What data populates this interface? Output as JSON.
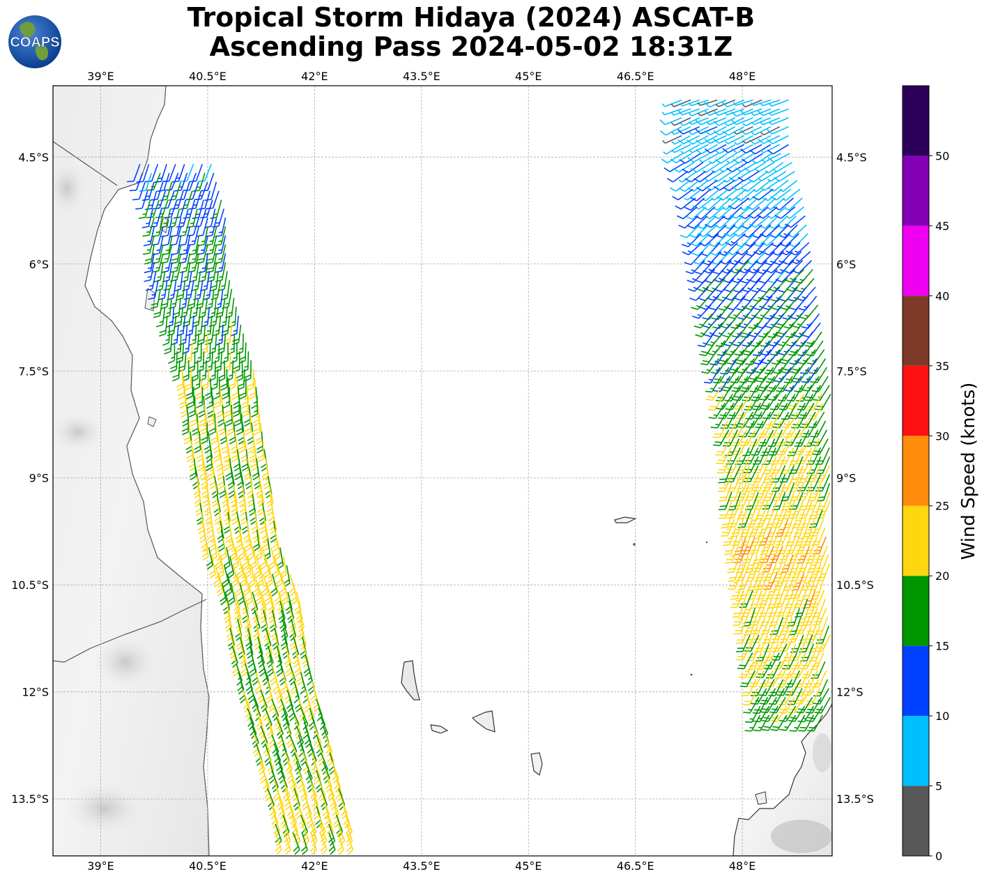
{
  "title": {
    "line1": "Tropical Storm Hidaya (2024) ASCAT-B",
    "line2": "Ascending Pass 2024-05-02 18:31Z"
  },
  "logo": {
    "text": "COAPS",
    "icon": "globe-logo"
  },
  "map": {
    "lon_range": [
      38.33,
      49.26
    ],
    "lat_range": [
      -14.3,
      -3.5
    ],
    "lon_ticks": [
      "39°E",
      "40.5°E",
      "42°E",
      "43.5°E",
      "45°E",
      "46.5°E",
      "48°E"
    ],
    "lat_ticks": [
      "4.5°S",
      "6°S",
      "7.5°S",
      "9°S",
      "10.5°S",
      "12°S",
      "13.5°S"
    ],
    "lon_values": [
      39,
      40.5,
      42,
      43.5,
      45,
      46.5,
      48
    ],
    "lat_values": [
      -4.5,
      -6,
      -7.5,
      -9,
      -10.5,
      -12,
      -13.5
    ],
    "grid": true,
    "background": "gray shaded topography over land"
  },
  "colorbar": {
    "label": "Wind Speed (knots)",
    "ticks": [
      "0",
      "5",
      "10",
      "15",
      "20",
      "25",
      "30",
      "35",
      "40",
      "45",
      "50"
    ],
    "bins": [
      {
        "min": 0,
        "max": 5,
        "color": "#585858"
      },
      {
        "min": 5,
        "max": 10,
        "color": "#00bfff"
      },
      {
        "min": 10,
        "max": 15,
        "color": "#0040ff"
      },
      {
        "min": 15,
        "max": 20,
        "color": "#009600"
      },
      {
        "min": 20,
        "max": 25,
        "color": "#ffd710"
      },
      {
        "min": 25,
        "max": 30,
        "color": "#ff8c0a"
      },
      {
        "min": 30,
        "max": 35,
        "color": "#ff1010"
      },
      {
        "min": 35,
        "max": 40,
        "color": "#7d3a28"
      },
      {
        "min": 40,
        "max": 45,
        "color": "#f000f0"
      },
      {
        "min": 45,
        "max": 50,
        "color": "#8200b4"
      },
      {
        "min": 50,
        "max": 55,
        "color": "#2d0059"
      }
    ]
  },
  "chart_data": {
    "type": "wind-barb-map",
    "swaths": [
      {
        "name": "west",
        "segments": [
          {
            "lat": -4.6,
            "lon_center": 40.1,
            "speed": 12,
            "dir": 200
          },
          {
            "lat": -5.3,
            "lon_center": 40.3,
            "speed": 14,
            "dir": 195
          },
          {
            "lat": -6.0,
            "lon_center": 40.3,
            "speed": 16,
            "dir": 190
          },
          {
            "lat": -6.8,
            "lon_center": 40.5,
            "speed": 17,
            "dir": 185
          },
          {
            "lat": -7.5,
            "lon_center": 40.7,
            "speed": 19,
            "dir": 180
          },
          {
            "lat": -8.3,
            "lon_center": 40.8,
            "speed": 21,
            "dir": 175
          },
          {
            "lat": -9.0,
            "lon_center": 40.9,
            "speed": 21,
            "dir": 170
          },
          {
            "lat": -9.8,
            "lon_center": 41.0,
            "speed": 22,
            "dir": 170
          },
          {
            "lat": -10.6,
            "lon_center": 41.3,
            "speed": 21,
            "dir": 165
          },
          {
            "lat": -11.4,
            "lon_center": 41.4,
            "speed": 20,
            "dir": 165
          },
          {
            "lat": -12.2,
            "lon_center": 41.6,
            "speed": 19,
            "dir": 160
          },
          {
            "lat": -13.0,
            "lon_center": 41.8,
            "speed": 21,
            "dir": 160
          },
          {
            "lat": -13.8,
            "lon_center": 42.0,
            "speed": 22,
            "dir": 160
          }
        ]
      },
      {
        "name": "east",
        "segments": [
          {
            "lat": -3.7,
            "lon_center": 47.9,
            "speed": 7,
            "dir": 250
          },
          {
            "lat": -4.4,
            "lon_center": 47.9,
            "speed": 8,
            "dir": 240
          },
          {
            "lat": -5.1,
            "lon_center": 48.1,
            "speed": 9,
            "dir": 230
          },
          {
            "lat": -5.8,
            "lon_center": 48.2,
            "speed": 12,
            "dir": 225
          },
          {
            "lat": -6.5,
            "lon_center": 48.3,
            "speed": 14,
            "dir": 220
          },
          {
            "lat": -7.2,
            "lon_center": 48.4,
            "speed": 16,
            "dir": 215
          },
          {
            "lat": -7.9,
            "lon_center": 48.5,
            "speed": 18,
            "dir": 210
          },
          {
            "lat": -8.6,
            "lon_center": 48.6,
            "speed": 20,
            "dir": 205
          },
          {
            "lat": -9.3,
            "lon_center": 48.6,
            "speed": 22,
            "dir": 200
          },
          {
            "lat": -10.0,
            "lon_center": 48.7,
            "speed": 23,
            "dir": 200
          },
          {
            "lat": -10.8,
            "lon_center": 48.8,
            "speed": 22,
            "dir": 200
          },
          {
            "lat": -11.5,
            "lon_center": 48.9,
            "speed": 21,
            "dir": 205
          },
          {
            "lat": -12.2,
            "lon_center": 49.0,
            "speed": 18,
            "dir": 210
          }
        ]
      }
    ]
  }
}
